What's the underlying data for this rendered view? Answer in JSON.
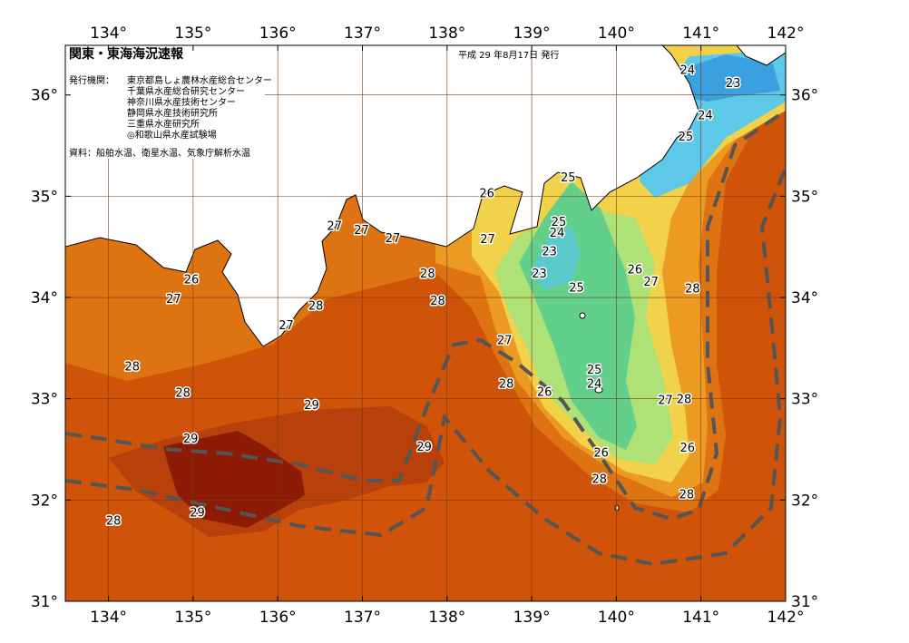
{
  "map": {
    "title": "関東・東海海況速報",
    "date": "平成 29 年8月17日 発行",
    "issuer_label": "発行機関：",
    "issuers": [
      "東京都島しょ農林水産総合センター",
      "千葉県水産総合研究センター",
      "神奈川県水産技術センター",
      "静岡県水産技術研究所",
      "三重県水産研究所",
      "◎和歌山県水産試験場"
    ],
    "source": "資料：船舶水温、衛星水温、気象庁解析水温",
    "xlim": [
      133.49,
      142
    ],
    "ylim": [
      31,
      36.49
    ],
    "xticks": [
      {
        "value": 134,
        "label": "134°"
      },
      {
        "value": 135,
        "label": "135°"
      },
      {
        "value": 136,
        "label": "136°"
      },
      {
        "value": 137,
        "label": "137°"
      },
      {
        "value": 138,
        "label": "138°"
      },
      {
        "value": 139,
        "label": "139°"
      },
      {
        "value": 140,
        "label": "140°"
      },
      {
        "value": 141,
        "label": "141°"
      },
      {
        "value": 142,
        "label": "142°"
      }
    ],
    "yticks": [
      {
        "value": 31,
        "label": "31°"
      },
      {
        "value": 32,
        "label": "32°"
      },
      {
        "value": 33,
        "label": "33°"
      },
      {
        "value": 34,
        "label": "34°"
      },
      {
        "value": 35,
        "label": "35°"
      },
      {
        "value": 36,
        "label": "36°"
      }
    ],
    "contour_labels": [
      {
        "value": 24,
        "lon": 140.84,
        "lat": 36.24
      },
      {
        "value": 23,
        "lon": 141.38,
        "lat": 36.11
      },
      {
        "value": 24,
        "lon": 141.05,
        "lat": 35.79
      },
      {
        "value": 25,
        "lon": 140.82,
        "lat": 35.58
      },
      {
        "value": 25,
        "lon": 139.43,
        "lat": 35.18
      },
      {
        "value": 26,
        "lon": 138.47,
        "lat": 35.02
      },
      {
        "value": 27,
        "lon": 136.67,
        "lat": 34.7
      },
      {
        "value": 27,
        "lon": 136.99,
        "lat": 34.66
      },
      {
        "value": 27,
        "lon": 137.36,
        "lat": 34.58
      },
      {
        "value": 27,
        "lon": 138.48,
        "lat": 34.57
      },
      {
        "value": 25,
        "lon": 139.32,
        "lat": 34.74
      },
      {
        "value": 24,
        "lon": 139.3,
        "lat": 34.63
      },
      {
        "value": 23,
        "lon": 139.21,
        "lat": 34.45
      },
      {
        "value": 23,
        "lon": 139.09,
        "lat": 34.23
      },
      {
        "value": 28,
        "lon": 137.77,
        "lat": 34.23
      },
      {
        "value": 26,
        "lon": 140.22,
        "lat": 34.27
      },
      {
        "value": 27,
        "lon": 140.41,
        "lat": 34.15
      },
      {
        "value": 28,
        "lon": 140.9,
        "lat": 34.08
      },
      {
        "value": 26,
        "lon": 134.98,
        "lat": 34.17
      },
      {
        "value": 25,
        "lon": 139.53,
        "lat": 34.09
      },
      {
        "value": 27,
        "lon": 134.77,
        "lat": 33.98
      },
      {
        "value": 28,
        "lon": 137.89,
        "lat": 33.96
      },
      {
        "value": 28,
        "lon": 136.45,
        "lat": 33.91
      },
      {
        "value": 27,
        "lon": 136.1,
        "lat": 33.72
      },
      {
        "value": 27,
        "lon": 138.68,
        "lat": 33.57
      },
      {
        "value": 28,
        "lon": 134.28,
        "lat": 33.31
      },
      {
        "value": 25,
        "lon": 139.74,
        "lat": 33.28
      },
      {
        "value": 24,
        "lon": 139.74,
        "lat": 33.14
      },
      {
        "value": 28,
        "lon": 138.7,
        "lat": 33.14
      },
      {
        "value": 28,
        "lon": 134.88,
        "lat": 33.05
      },
      {
        "value": 26,
        "lon": 139.15,
        "lat": 33.06
      },
      {
        "value": 27,
        "lon": 140.58,
        "lat": 32.98
      },
      {
        "value": 28,
        "lon": 140.8,
        "lat": 32.99
      },
      {
        "value": 29,
        "lon": 136.4,
        "lat": 32.93
      },
      {
        "value": 29,
        "lon": 134.97,
        "lat": 32.6
      },
      {
        "value": 29,
        "lon": 137.73,
        "lat": 32.52
      },
      {
        "value": 26,
        "lon": 140.84,
        "lat": 32.51
      },
      {
        "value": 26,
        "lon": 139.82,
        "lat": 32.46
      },
      {
        "value": 28,
        "lon": 139.8,
        "lat": 32.2
      },
      {
        "value": 28,
        "lon": 140.83,
        "lat": 32.05
      },
      {
        "value": 29,
        "lon": 135.05,
        "lat": 31.87
      },
      {
        "value": 28,
        "lon": 134.06,
        "lat": 31.79
      }
    ]
  }
}
